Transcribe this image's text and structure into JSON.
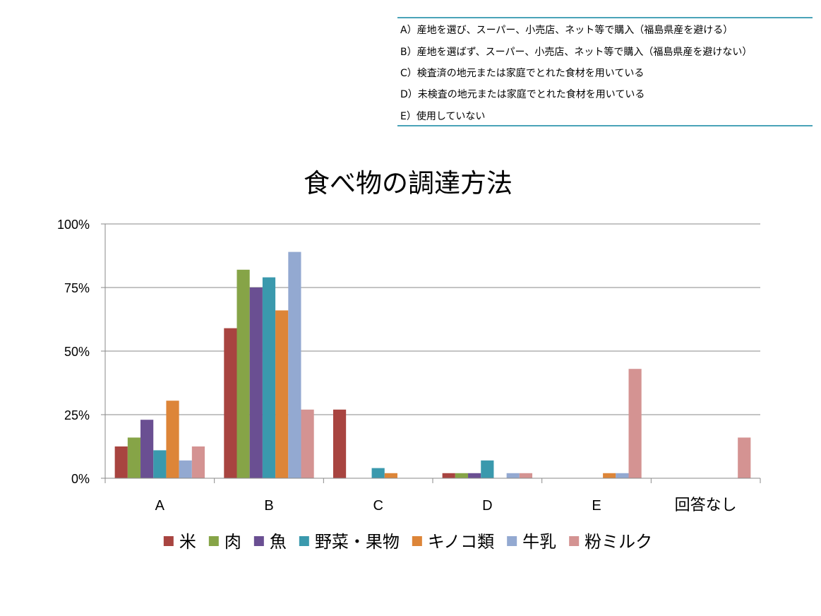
{
  "legend_notes": [
    "A）産地を選び、スーパー、小売店、ネット等で購入（福島県産を避ける）",
    "B）産地を選ばず、スーパー、小売店、ネット等で購入（福島県産を避けない）",
    "C）検査済の地元または家庭でとれた食材を用いている",
    "D）未検査の地元または家庭でとれた食材を用いている",
    "E）使用していない"
  ],
  "chart_data": {
    "type": "bar",
    "title": "食べ物の調達方法",
    "categories": [
      "A",
      "B",
      "C",
      "D",
      "E",
      "回答なし"
    ],
    "y_tick_labels": [
      "0%",
      "25%",
      "50%",
      "75%",
      "100%"
    ],
    "ylim": [
      0,
      100
    ],
    "grid": true,
    "legend_position": "bottom",
    "series": [
      {
        "name": "米",
        "color": "#a84440",
        "values": [
          12.5,
          59,
          27,
          2,
          0,
          0
        ]
      },
      {
        "name": "肉",
        "color": "#86a447",
        "values": [
          16,
          82,
          0,
          2,
          0,
          0
        ]
      },
      {
        "name": "魚",
        "color": "#6a4f92",
        "values": [
          23,
          75,
          0,
          2,
          0,
          0
        ]
      },
      {
        "name": "野菜・果物",
        "color": "#3a99ad",
        "values": [
          11,
          79,
          4,
          7,
          0,
          0
        ]
      },
      {
        "name": "キノコ類",
        "color": "#dd8538",
        "values": [
          30.5,
          66,
          2,
          0,
          2,
          0
        ]
      },
      {
        "name": "牛乳",
        "color": "#93a9d1",
        "values": [
          7,
          89,
          0,
          2,
          2,
          0
        ]
      },
      {
        "name": "粉ミルク",
        "color": "#d49392",
        "values": [
          12.5,
          27,
          0,
          2,
          43,
          16
        ]
      }
    ]
  }
}
